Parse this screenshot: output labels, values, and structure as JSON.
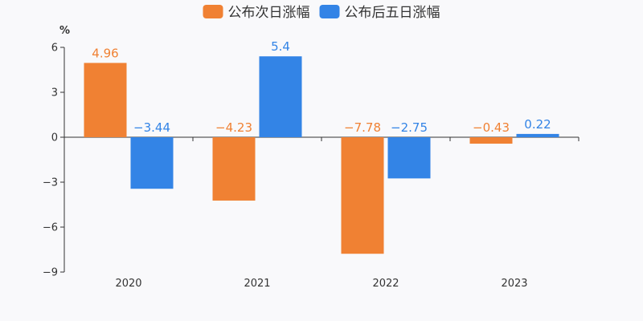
{
  "chart_data": {
    "type": "bar",
    "categories": [
      "2020",
      "2021",
      "2022",
      "2023"
    ],
    "series": [
      {
        "name": "公布次日涨幅",
        "color": "#f08133",
        "values": [
          4.96,
          -4.23,
          -7.78,
          -0.43
        ],
        "labels": [
          "4.96",
          "−4.23",
          "−7.78",
          "−0.43"
        ]
      },
      {
        "name": "公布后五日涨幅",
        "color": "#3384e6",
        "values": [
          -3.44,
          5.4,
          -2.75,
          0.22
        ],
        "labels": [
          "−3.44",
          "5.4",
          "−2.75",
          "0.22"
        ]
      }
    ],
    "ylabel": "%",
    "ylim": [
      -9,
      6
    ],
    "yticks": [
      6,
      3,
      0,
      -3,
      -6,
      -9
    ],
    "ytick_labels": [
      "6",
      "3",
      "0",
      "−3",
      "−6",
      "−9"
    ],
    "legend_position": "top-center",
    "grid": false
  }
}
